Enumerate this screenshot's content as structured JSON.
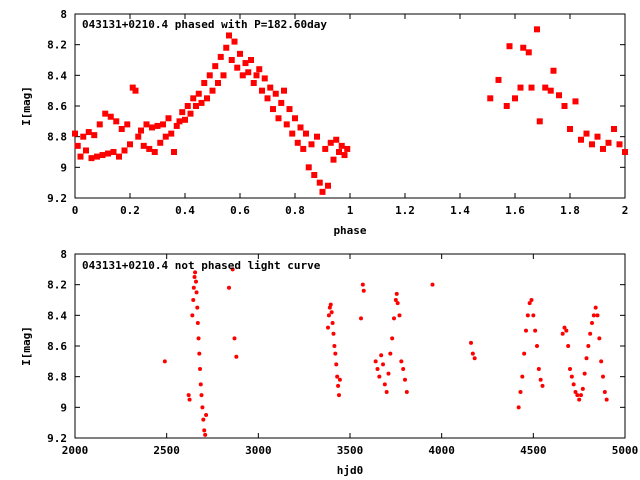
{
  "chart_data": [
    {
      "type": "scatter",
      "title": "043131+0210.4 phased with P=182.60day",
      "xlabel": "phase",
      "ylabel": "I[mag]",
      "xlim": [
        0,
        2
      ],
      "ylim": [
        8,
        9.2
      ],
      "y_inverted": true,
      "grid": false,
      "x_ticks": [
        "0",
        "0.2",
        "0.4",
        "0.6",
        "0.8",
        "1",
        "1.2",
        "1.4",
        "1.6",
        "1.8",
        "2"
      ],
      "y_ticks": [
        "8",
        "8.2",
        "8.4",
        "8.6",
        "8.8",
        "9",
        "9.2"
      ],
      "marker": "filled-square",
      "color": "#ff0000",
      "series": [
        {
          "points": [
            [
              0.0,
              8.78
            ],
            [
              0.01,
              8.86
            ],
            [
              0.02,
              8.93
            ],
            [
              0.03,
              8.8
            ],
            [
              0.04,
              8.89
            ],
            [
              0.05,
              8.77
            ],
            [
              0.06,
              8.94
            ],
            [
              0.07,
              8.79
            ],
            [
              0.08,
              8.93
            ],
            [
              0.09,
              8.72
            ],
            [
              0.1,
              8.92
            ],
            [
              0.11,
              8.65
            ],
            [
              0.12,
              8.91
            ],
            [
              0.13,
              8.67
            ],
            [
              0.14,
              8.9
            ],
            [
              0.15,
              8.7
            ],
            [
              0.16,
              8.93
            ],
            [
              0.17,
              8.75
            ],
            [
              0.18,
              8.89
            ],
            [
              0.19,
              8.72
            ],
            [
              0.2,
              8.85
            ],
            [
              0.21,
              8.48
            ],
            [
              0.22,
              8.5
            ],
            [
              0.23,
              8.8
            ],
            [
              0.24,
              8.76
            ],
            [
              0.25,
              8.86
            ],
            [
              0.26,
              8.72
            ],
            [
              0.27,
              8.88
            ],
            [
              0.28,
              8.74
            ],
            [
              0.29,
              8.9
            ],
            [
              0.3,
              8.73
            ],
            [
              0.31,
              8.84
            ],
            [
              0.32,
              8.72
            ],
            [
              0.33,
              8.8
            ],
            [
              0.34,
              8.68
            ],
            [
              0.35,
              8.78
            ],
            [
              0.36,
              8.9
            ],
            [
              0.37,
              8.73
            ],
            [
              0.38,
              8.7
            ],
            [
              0.39,
              8.64
            ],
            [
              0.4,
              8.69
            ],
            [
              0.41,
              8.6
            ],
            [
              0.42,
              8.65
            ],
            [
              0.43,
              8.55
            ],
            [
              0.44,
              8.6
            ],
            [
              0.45,
              8.52
            ],
            [
              0.46,
              8.58
            ],
            [
              0.47,
              8.45
            ],
            [
              0.48,
              8.55
            ],
            [
              0.49,
              8.4
            ],
            [
              0.5,
              8.5
            ],
            [
              0.51,
              8.34
            ],
            [
              0.52,
              8.45
            ],
            [
              0.53,
              8.28
            ],
            [
              0.54,
              8.4
            ],
            [
              0.55,
              8.22
            ],
            [
              0.56,
              8.14
            ],
            [
              0.57,
              8.3
            ],
            [
              0.58,
              8.18
            ],
            [
              0.59,
              8.35
            ],
            [
              0.6,
              8.26
            ],
            [
              0.61,
              8.4
            ],
            [
              0.62,
              8.32
            ],
            [
              0.63,
              8.38
            ],
            [
              0.64,
              8.3
            ],
            [
              0.65,
              8.45
            ],
            [
              0.66,
              8.4
            ],
            [
              0.67,
              8.36
            ],
            [
              0.68,
              8.5
            ],
            [
              0.69,
              8.42
            ],
            [
              0.7,
              8.55
            ],
            [
              0.71,
              8.48
            ],
            [
              0.72,
              8.62
            ],
            [
              0.73,
              8.52
            ],
            [
              0.74,
              8.68
            ],
            [
              0.75,
              8.58
            ],
            [
              0.76,
              8.5
            ],
            [
              0.77,
              8.72
            ],
            [
              0.78,
              8.62
            ],
            [
              0.79,
              8.78
            ],
            [
              0.8,
              8.68
            ],
            [
              0.81,
              8.84
            ],
            [
              0.82,
              8.74
            ],
            [
              0.83,
              8.88
            ],
            [
              0.84,
              8.78
            ],
            [
              0.85,
              9.0
            ],
            [
              0.86,
              8.85
            ],
            [
              0.87,
              9.05
            ],
            [
              0.88,
              8.8
            ],
            [
              0.89,
              9.1
            ],
            [
              0.9,
              9.16
            ],
            [
              0.91,
              8.88
            ],
            [
              0.92,
              9.12
            ],
            [
              0.93,
              8.84
            ],
            [
              0.94,
              8.95
            ],
            [
              0.95,
              8.82
            ],
            [
              0.96,
              8.9
            ],
            [
              0.97,
              8.86
            ],
            [
              0.98,
              8.92
            ],
            [
              0.99,
              8.88
            ],
            [
              1.51,
              8.55
            ],
            [
              1.54,
              8.43
            ],
            [
              1.57,
              8.6
            ],
            [
              1.58,
              8.21
            ],
            [
              1.6,
              8.55
            ],
            [
              1.62,
              8.48
            ],
            [
              1.63,
              8.22
            ],
            [
              1.65,
              8.25
            ],
            [
              1.66,
              8.48
            ],
            [
              1.68,
              8.1
            ],
            [
              1.69,
              8.7
            ],
            [
              1.71,
              8.48
            ],
            [
              1.73,
              8.5
            ],
            [
              1.74,
              8.37
            ],
            [
              1.76,
              8.53
            ],
            [
              1.78,
              8.6
            ],
            [
              1.8,
              8.75
            ],
            [
              1.82,
              8.57
            ],
            [
              1.84,
              8.82
            ],
            [
              1.86,
              8.78
            ],
            [
              1.88,
              8.85
            ],
            [
              1.9,
              8.8
            ],
            [
              1.92,
              8.88
            ],
            [
              1.94,
              8.84
            ],
            [
              1.96,
              8.75
            ],
            [
              1.98,
              8.85
            ],
            [
              2.0,
              8.9
            ]
          ]
        }
      ]
    },
    {
      "type": "scatter",
      "title": "043131+0210.4 not phased light curve",
      "xlabel": "hjd0",
      "ylabel": "I[mag]",
      "xlim": [
        2000,
        5000
      ],
      "ylim": [
        8,
        9.2
      ],
      "y_inverted": true,
      "grid": false,
      "x_ticks": [
        "2000",
        "2500",
        "3000",
        "3500",
        "4000",
        "4500",
        "5000"
      ],
      "y_ticks": [
        "8",
        "8.2",
        "8.4",
        "8.6",
        "8.8",
        "9",
        "9.2"
      ],
      "marker": "small-filled-circle",
      "color": "#ff0000",
      "series": [
        {
          "points": [
            [
              2490,
              8.7
            ],
            [
              2620,
              8.92
            ],
            [
              2625,
              8.95
            ],
            [
              2640,
              8.4
            ],
            [
              2645,
              8.3
            ],
            [
              2648,
              8.22
            ],
            [
              2652,
              8.15
            ],
            [
              2655,
              8.12
            ],
            [
              2660,
              8.18
            ],
            [
              2663,
              8.25
            ],
            [
              2667,
              8.35
            ],
            [
              2670,
              8.45
            ],
            [
              2674,
              8.55
            ],
            [
              2678,
              8.65
            ],
            [
              2682,
              8.75
            ],
            [
              2686,
              8.85
            ],
            [
              2690,
              8.92
            ],
            [
              2695,
              9.0
            ],
            [
              2700,
              9.08
            ],
            [
              2705,
              9.15
            ],
            [
              2710,
              9.18
            ],
            [
              2715,
              9.05
            ],
            [
              2840,
              8.22
            ],
            [
              2860,
              8.1
            ],
            [
              2870,
              8.55
            ],
            [
              2880,
              8.67
            ],
            [
              3380,
              8.48
            ],
            [
              3385,
              8.4
            ],
            [
              3390,
              8.35
            ],
            [
              3395,
              8.33
            ],
            [
              3400,
              8.38
            ],
            [
              3405,
              8.45
            ],
            [
              3410,
              8.52
            ],
            [
              3415,
              8.6
            ],
            [
              3420,
              8.65
            ],
            [
              3425,
              8.72
            ],
            [
              3430,
              8.8
            ],
            [
              3435,
              8.86
            ],
            [
              3440,
              8.92
            ],
            [
              3445,
              8.82
            ],
            [
              3560,
              8.42
            ],
            [
              3570,
              8.2
            ],
            [
              3575,
              8.24
            ],
            [
              3640,
              8.7
            ],
            [
              3650,
              8.75
            ],
            [
              3660,
              8.8
            ],
            [
              3670,
              8.66
            ],
            [
              3680,
              8.72
            ],
            [
              3690,
              8.85
            ],
            [
              3700,
              8.9
            ],
            [
              3710,
              8.78
            ],
            [
              3720,
              8.65
            ],
            [
              3730,
              8.55
            ],
            [
              3740,
              8.42
            ],
            [
              3750,
              8.3
            ],
            [
              3755,
              8.26
            ],
            [
              3760,
              8.32
            ],
            [
              3770,
              8.4
            ],
            [
              3780,
              8.7
            ],
            [
              3790,
              8.75
            ],
            [
              3800,
              8.82
            ],
            [
              3810,
              8.9
            ],
            [
              3950,
              8.2
            ],
            [
              4160,
              8.58
            ],
            [
              4170,
              8.65
            ],
            [
              4180,
              8.68
            ],
            [
              4420,
              9.0
            ],
            [
              4430,
              8.9
            ],
            [
              4440,
              8.8
            ],
            [
              4450,
              8.65
            ],
            [
              4460,
              8.5
            ],
            [
              4470,
              8.4
            ],
            [
              4480,
              8.32
            ],
            [
              4490,
              8.3
            ],
            [
              4500,
              8.4
            ],
            [
              4510,
              8.5
            ],
            [
              4520,
              8.6
            ],
            [
              4530,
              8.75
            ],
            [
              4540,
              8.82
            ],
            [
              4550,
              8.86
            ],
            [
              4660,
              8.52
            ],
            [
              4670,
              8.48
            ],
            [
              4680,
              8.5
            ],
            [
              4690,
              8.6
            ],
            [
              4700,
              8.75
            ],
            [
              4710,
              8.8
            ],
            [
              4720,
              8.85
            ],
            [
              4730,
              8.9
            ],
            [
              4740,
              8.92
            ],
            [
              4750,
              8.95
            ],
            [
              4760,
              8.92
            ],
            [
              4770,
              8.88
            ],
            [
              4780,
              8.78
            ],
            [
              4790,
              8.68
            ],
            [
              4800,
              8.6
            ],
            [
              4810,
              8.52
            ],
            [
              4820,
              8.45
            ],
            [
              4830,
              8.4
            ],
            [
              4840,
              8.35
            ],
            [
              4850,
              8.4
            ],
            [
              4860,
              8.55
            ],
            [
              4870,
              8.7
            ],
            [
              4880,
              8.8
            ],
            [
              4890,
              8.9
            ],
            [
              4900,
              8.95
            ]
          ]
        }
      ]
    }
  ]
}
